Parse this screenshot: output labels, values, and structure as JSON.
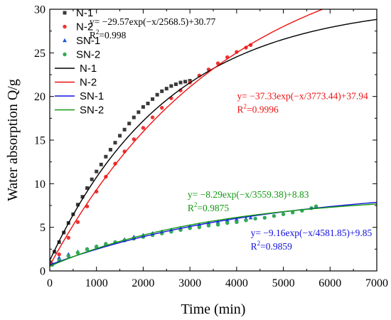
{
  "chart_data": {
    "type": "scatter",
    "xlabel": "Time (min)",
    "ylabel": "Water absorption Q/g",
    "xlim": [
      0,
      7000
    ],
    "ylim": [
      0,
      30
    ],
    "xticks": [
      "0",
      "1000",
      "2000",
      "3000",
      "4000",
      "5000",
      "6000",
      "7000"
    ],
    "yticks": [
      "0",
      "5",
      "10",
      "15",
      "20",
      "25",
      "30"
    ],
    "grid": false,
    "legend_placement": "top-left",
    "series": [
      {
        "name": "N-1",
        "kind": "points",
        "marker": "square",
        "color": "#3a3a3a",
        "x": [
          0,
          100,
          200,
          300,
          400,
          500,
          600,
          700,
          800,
          900,
          1000,
          1100,
          1200,
          1300,
          1400,
          1500,
          1600,
          1700,
          1800,
          1900,
          2000,
          2100,
          2200,
          2300,
          2400,
          2500,
          2600,
          2700,
          2800,
          2900,
          3000
        ],
        "y": [
          1.0,
          2.2,
          3.3,
          4.4,
          5.5,
          6.5,
          7.6,
          8.5,
          9.5,
          10.5,
          11.4,
          12.2,
          13.1,
          13.9,
          14.7,
          15.5,
          16.2,
          16.9,
          17.6,
          18.2,
          18.8,
          19.2,
          19.7,
          20.2,
          20.6,
          20.9,
          21.2,
          21.4,
          21.6,
          21.7,
          21.8
        ]
      },
      {
        "name": "N-2",
        "kind": "points",
        "marker": "circle",
        "color": "#ee3333",
        "x": [
          50,
          200,
          400,
          600,
          800,
          1000,
          1200,
          1400,
          1600,
          1800,
          2000,
          2200,
          2400,
          2600,
          2800,
          3000,
          3200,
          3400,
          3600,
          3800,
          4000,
          4200,
          4300
        ],
        "y": [
          0.8,
          1.9,
          3.8,
          5.6,
          7.4,
          9.1,
          10.8,
          12.3,
          13.7,
          15.1,
          16.4,
          17.6,
          18.7,
          19.8,
          20.7,
          21.6,
          22.4,
          23.1,
          23.8,
          24.5,
          25.1,
          25.6,
          25.9
        ]
      },
      {
        "name": "SN-1",
        "kind": "points",
        "marker": "triangle",
        "color": "#2255dd",
        "x": [
          50,
          200,
          400,
          600,
          800,
          1000,
          1200,
          1400,
          1600,
          1800,
          2000,
          2200,
          2400,
          2600,
          2800,
          3000,
          3200,
          3400,
          3600,
          3800,
          4000,
          4200,
          4300
        ],
        "y": [
          0.8,
          1.5,
          1.9,
          2.2,
          2.5,
          2.8,
          3.1,
          3.3,
          3.6,
          3.9,
          4.1,
          4.3,
          4.5,
          4.7,
          4.9,
          5.1,
          5.3,
          5.5,
          5.6,
          5.8,
          5.9,
          6.0,
          6.1
        ]
      },
      {
        "name": "SN-2",
        "kind": "points",
        "marker": "circle",
        "color": "#33aa55",
        "x": [
          50,
          200,
          400,
          600,
          800,
          1000,
          1200,
          1400,
          1600,
          1800,
          2000,
          2200,
          2400,
          2600,
          2800,
          3000,
          3200,
          3400,
          3600,
          3800,
          4000,
          4200,
          4400,
          4600,
          4800,
          5000,
          5200,
          5400,
          5600,
          5700
        ],
        "y": [
          0.7,
          1.2,
          1.7,
          2.1,
          2.5,
          2.8,
          3.1,
          3.3,
          3.5,
          3.7,
          3.9,
          4.1,
          4.3,
          4.5,
          4.7,
          4.9,
          5.0,
          5.2,
          5.3,
          5.5,
          5.6,
          5.8,
          6.0,
          6.1,
          6.3,
          6.5,
          6.7,
          6.9,
          7.2,
          7.4
        ]
      },
      {
        "name": "N-1",
        "kind": "fit",
        "color": "#000000",
        "A": -29.57,
        "t": 2568.5,
        "y0": 30.77
      },
      {
        "name": "N-2",
        "kind": "fit",
        "color": "#ee1111",
        "A": -37.33,
        "t": 3773.44,
        "y0": 37.94
      },
      {
        "name": "SN-1",
        "kind": "fit",
        "color": "#1111dd",
        "A": -9.16,
        "t": 4581.85,
        "y0": 9.85
      },
      {
        "name": "SN-2",
        "kind": "fit",
        "color": "#119911",
        "A": -8.29,
        "t": 3559.38,
        "y0": 8.83
      }
    ],
    "annotations": [
      {
        "color": "#000000",
        "equation": "y= −29.57exp(−x/2568.5)+30.77",
        "r2_prefix": "R",
        "r2_sup": "2",
        "r2_value": "=0.998",
        "x": 850,
        "y": 28.2
      },
      {
        "color": "#ee1111",
        "equation": "y= −37.33exp(−x/3773.44)+37.94",
        "r2_prefix": "R",
        "r2_sup": "2",
        "r2_value": "=0.9996",
        "x": 4010,
        "y": 19.7
      },
      {
        "color": "#119911",
        "equation": "y= −8.29exp(−x/3559.38)+8.83",
        "r2_prefix": "R",
        "r2_sup": "2",
        "r2_value": "=0.9875",
        "x": 2950,
        "y": 8.4
      },
      {
        "color": "#1111dd",
        "equation": "y= −9.16exp(−x/4581.85)+9.85",
        "r2_prefix": "R",
        "r2_sup": "2",
        "r2_value": "=0.9859",
        "x": 4300,
        "y": 4.0
      }
    ]
  }
}
